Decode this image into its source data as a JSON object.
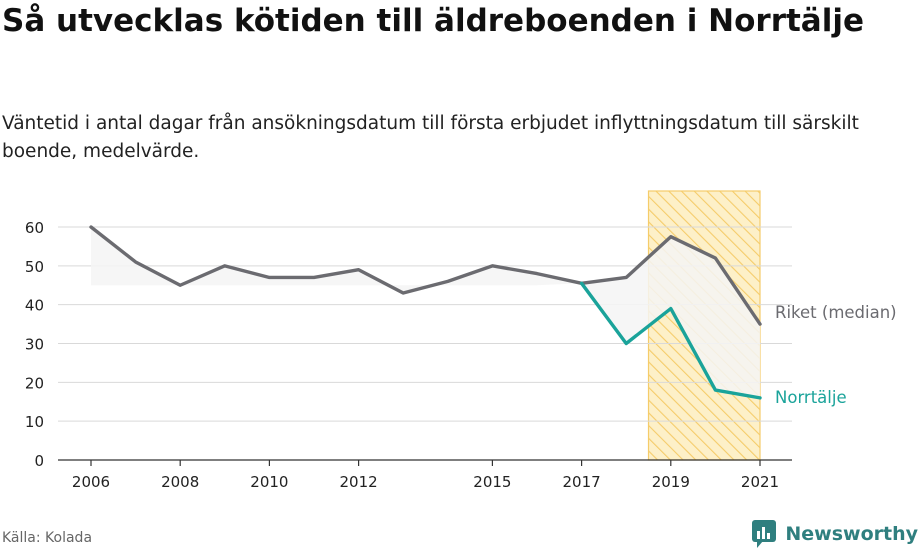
{
  "header": {
    "title": "Så utvecklas kötiden till äldreboenden i Norrtälje",
    "subtitle": "Väntetid i antal dagar från ansökningsdatum till första erbjudet inflyttningsdatum till särskilt boende, medelvärde."
  },
  "footer": {
    "source": "Källa: Kolada",
    "brand": "Newsworthy"
  },
  "colors": {
    "riket": "#6b6b70",
    "norrtalje": "#1aa39a",
    "highlight_fill": "#fdf0c8",
    "highlight_stroke": "#f5cc6a",
    "grid": "#d9d9d9",
    "band": "#f4f4f4"
  },
  "chart_data": {
    "type": "line",
    "title": "Så utvecklas kötiden till äldreboenden i Norrtälje",
    "xlabel": "",
    "ylabel": "",
    "xlim": [
      2005.7,
      2021.75
    ],
    "ylim": [
      0,
      60
    ],
    "yticks": [
      0,
      10,
      20,
      30,
      40,
      50,
      60
    ],
    "xticks": [
      2006,
      2008,
      2010,
      2012,
      2015,
      2017,
      2019,
      2021
    ],
    "grid": true,
    "highlight_range": [
      2018.5,
      2021
    ],
    "band_floor": 45,
    "series": [
      {
        "name": "Riket (median)",
        "x": [
          2006,
          2007,
          2008,
          2009,
          2010,
          2011,
          2012,
          2013,
          2014,
          2015,
          2016,
          2017,
          2018,
          2019,
          2020,
          2021
        ],
        "values": [
          60,
          51,
          45,
          50,
          47,
          47,
          49,
          43,
          46,
          50,
          48,
          45.5,
          47,
          57.5,
          52,
          35
        ]
      },
      {
        "name": "Norrtälje",
        "x": [
          2017,
          2018,
          2019,
          2020,
          2021
        ],
        "values": [
          45.5,
          30,
          39,
          18,
          16
        ]
      }
    ]
  }
}
